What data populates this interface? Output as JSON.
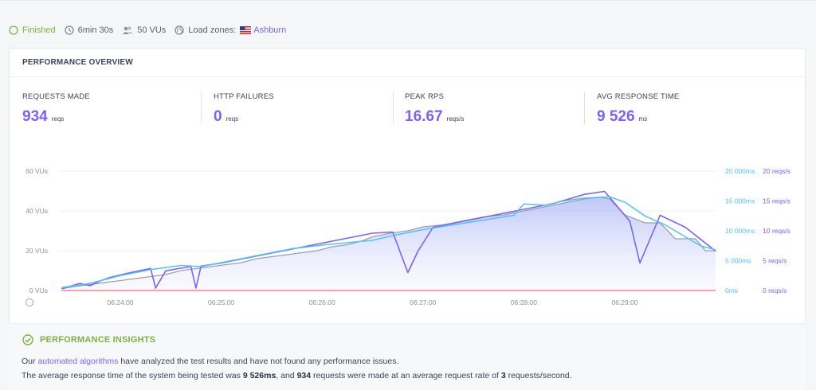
{
  "status": {
    "state": "Finished",
    "duration": "6min 30s",
    "vus": "50 VUs",
    "load_zones_label": "Load zones:",
    "zone": "Ashburn"
  },
  "overview": {
    "title": "PERFORMANCE OVERVIEW",
    "metrics": [
      {
        "label": "REQUESTS MADE",
        "value": "934",
        "unit": "reqs"
      },
      {
        "label": "HTTP FAILURES",
        "value": "0",
        "unit": "reqs"
      },
      {
        "label": "PEAK RPS",
        "value": "16.67",
        "unit": "reqs/s"
      },
      {
        "label": "AVG RESPONSE TIME",
        "value": "9 526",
        "unit": "ms"
      }
    ]
  },
  "colors": {
    "accent": "#7b61ff",
    "response_time": "#4fc3f7",
    "vus": "#9aa0ab",
    "failures": "#ff6b81",
    "finished": "#7cb342"
  },
  "chart_data": {
    "type": "line",
    "x_ticks": [
      "06:24:00",
      "06:25:00",
      "06:26:00",
      "06:27:00",
      "06:28:00",
      "06:29:00"
    ],
    "x_range_minutes": [
      -0.6,
      5.9
    ],
    "left_axis": {
      "ticks": [
        "0 VUs",
        "20 VUs",
        "40 VUs",
        "60 VUs"
      ],
      "ylim": [
        0,
        60
      ]
    },
    "right_axis_ms": {
      "ticks": [
        "0ms",
        "5 000ms",
        "10 000ms",
        "15 000ms",
        "20 000ms"
      ],
      "ylim": [
        0,
        20000
      ]
    },
    "right_axis_rps": {
      "ticks": [
        "0 reqs/s",
        "5 reqs/s",
        "10 reqs/s",
        "15 reqs/s",
        "20 reqs/s"
      ],
      "ylim": [
        0,
        20
      ]
    },
    "grid": true,
    "series": [
      {
        "axis": "vus",
        "values": [
          [
            -0.58,
            1
          ],
          [
            -0.45,
            2
          ],
          [
            -0.3,
            3
          ],
          [
            -0.15,
            4
          ],
          [
            0,
            5
          ],
          [
            0.15,
            6
          ],
          [
            0.3,
            7
          ],
          [
            0.45,
            8
          ],
          [
            0.6,
            10
          ],
          [
            0.75,
            11
          ],
          [
            0.9,
            12
          ],
          [
            1.05,
            13
          ],
          [
            1.2,
            14
          ],
          [
            1.35,
            16
          ],
          [
            1.5,
            17
          ],
          [
            1.65,
            18
          ],
          [
            1.8,
            19
          ],
          [
            1.95,
            20
          ],
          [
            2.1,
            22
          ],
          [
            2.25,
            23
          ],
          [
            2.4,
            25
          ],
          [
            2.5,
            27
          ],
          [
            2.7,
            29
          ],
          [
            2.85,
            30
          ],
          [
            3.0,
            32
          ],
          [
            3.2,
            33
          ],
          [
            3.4,
            35
          ],
          [
            3.6,
            37
          ],
          [
            3.8,
            38
          ],
          [
            4.0,
            40
          ],
          [
            4.2,
            42
          ],
          [
            4.4,
            44
          ],
          [
            4.6,
            46
          ],
          [
            4.75,
            47
          ],
          [
            4.85,
            46
          ],
          [
            5.0,
            38
          ],
          [
            5.2,
            34
          ],
          [
            5.35,
            34
          ],
          [
            5.5,
            26
          ],
          [
            5.7,
            26
          ],
          [
            5.8,
            20
          ],
          [
            5.9,
            20
          ]
        ]
      },
      {
        "axis": "rps",
        "values": [
          [
            -0.58,
            0.3
          ],
          [
            -0.4,
            1.2
          ],
          [
            -0.3,
            0.8
          ],
          [
            -0.2,
            1.6
          ],
          [
            -0.1,
            2.2
          ],
          [
            0.1,
            3.0
          ],
          [
            0.3,
            3.7
          ],
          [
            0.35,
            0.4
          ],
          [
            0.45,
            3.3
          ],
          [
            0.55,
            3.6
          ],
          [
            0.7,
            4.0
          ],
          [
            0.75,
            0.4
          ],
          [
            0.8,
            4.1
          ],
          [
            1.0,
            4.6
          ],
          [
            1.3,
            5.6
          ],
          [
            1.6,
            6.6
          ],
          [
            1.9,
            7.6
          ],
          [
            2.2,
            8.6
          ],
          [
            2.5,
            9.6
          ],
          [
            2.7,
            9.8
          ],
          [
            2.85,
            3.0
          ],
          [
            2.95,
            6.6
          ],
          [
            3.1,
            10.6
          ],
          [
            3.4,
            11.6
          ],
          [
            3.7,
            12.6
          ],
          [
            4.0,
            13.6
          ],
          [
            4.3,
            14.6
          ],
          [
            4.6,
            16.1
          ],
          [
            4.8,
            16.6
          ],
          [
            5.05,
            11.6
          ],
          [
            5.15,
            4.6
          ],
          [
            5.35,
            12.6
          ],
          [
            5.6,
            10.6
          ],
          [
            5.9,
            6.6
          ]
        ]
      },
      {
        "axis": "ms",
        "values": [
          [
            -0.58,
            500
          ],
          [
            -0.3,
            1200
          ],
          [
            0,
            2500
          ],
          [
            0.3,
            3500
          ],
          [
            0.6,
            4200
          ],
          [
            0.8,
            4000
          ],
          [
            1.1,
            5000
          ],
          [
            1.4,
            6000
          ],
          [
            1.7,
            7000
          ],
          [
            2.0,
            7600
          ],
          [
            2.3,
            8100
          ],
          [
            2.5,
            8400
          ],
          [
            2.7,
            9200
          ],
          [
            3.0,
            10200
          ],
          [
            3.3,
            11000
          ],
          [
            3.6,
            11800
          ],
          [
            3.9,
            12600
          ],
          [
            4.0,
            14500
          ],
          [
            4.2,
            14300
          ],
          [
            4.4,
            15000
          ],
          [
            4.6,
            15500
          ],
          [
            4.85,
            15700
          ],
          [
            5.0,
            14800
          ],
          [
            5.2,
            12500
          ],
          [
            5.4,
            11000
          ],
          [
            5.6,
            9000
          ],
          [
            5.75,
            7500
          ],
          [
            5.9,
            6800
          ]
        ]
      },
      {
        "axis": "rps_failures",
        "values": [
          [
            -0.58,
            0
          ],
          [
            5.9,
            0
          ]
        ]
      }
    ]
  },
  "insights": {
    "title": "PERFORMANCE INSIGHTS",
    "line1_prefix": "Our",
    "line1_link": "automated algorithms",
    "line1_suffix": "have analyzed the test results and have not found any performance issues.",
    "line2_a": "The average response time of the system being tested was",
    "line2_ms": "9 526ms",
    "line2_b": ", and",
    "line2_reqs": "934",
    "line2_c": "requests were made at an average request rate of",
    "line2_rate": "3",
    "line2_d": "requests/second."
  }
}
